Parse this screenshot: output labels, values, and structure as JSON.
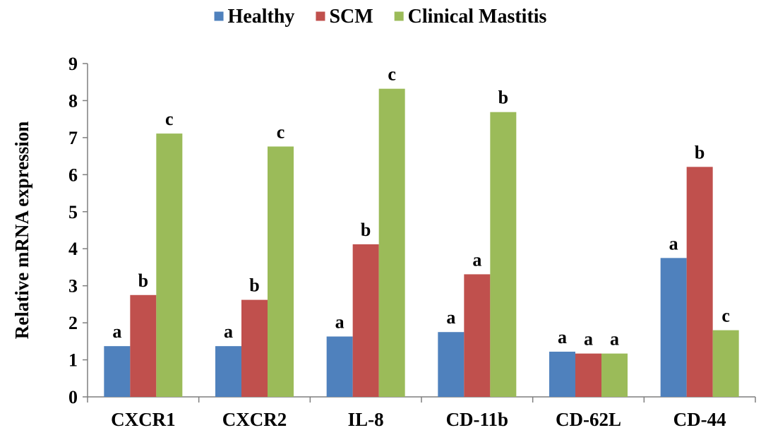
{
  "chart_data": {
    "type": "bar",
    "title": "",
    "xlabel": "",
    "ylabel": "Relative mRNA expression",
    "ylim": [
      0,
      9
    ],
    "yticks": [
      "0",
      "1",
      "2",
      "3",
      "4",
      "5",
      "6",
      "7",
      "8",
      "9"
    ],
    "grid": false,
    "legend_position": "top",
    "categories": [
      "CXCR1",
      "CXCR2",
      "IL-8",
      "CD-11b",
      "CD-62L",
      "CD-44"
    ],
    "series": [
      {
        "name": "Healthy",
        "color": "#4F81BD",
        "values": [
          1.37,
          1.37,
          1.63,
          1.75,
          1.22,
          3.75
        ],
        "labels": [
          "a",
          "a",
          "a",
          "a",
          "a",
          "a"
        ]
      },
      {
        "name": "SCM",
        "color": "#C0504D",
        "values": [
          2.75,
          2.62,
          4.12,
          3.31,
          1.17,
          6.21
        ],
        "labels": [
          "b",
          "b",
          "b",
          "a",
          "a",
          "b"
        ]
      },
      {
        "name": "Clinical Mastitis",
        "color": "#9BBB59",
        "values": [
          7.11,
          6.76,
          8.32,
          7.69,
          1.17,
          1.8
        ],
        "labels": [
          "c",
          "c",
          "c",
          "b",
          "a",
          "c"
        ]
      }
    ]
  }
}
